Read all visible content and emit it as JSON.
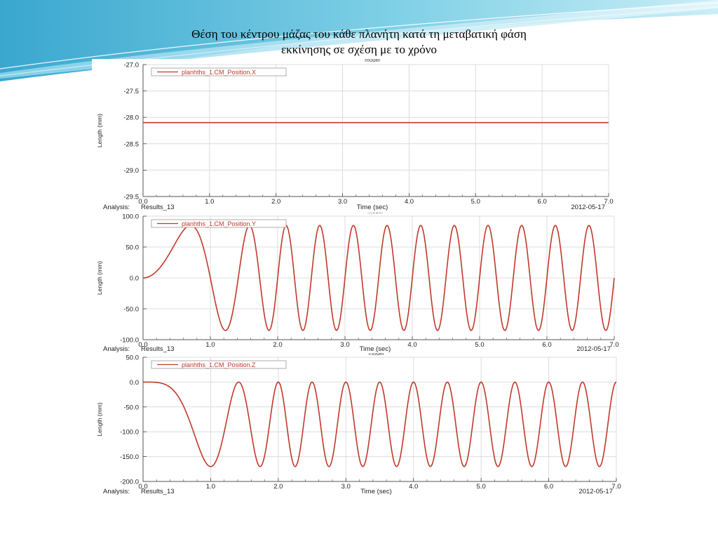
{
  "slide": {
    "title_line1": "Θέση του κέντρου μάζας του κάθε πλανήτη κατά τη μεταβατική φάση",
    "title_line2": "εκκίνησης σε σχέση με το χρόνο"
  },
  "colors": {
    "series": "#c0392b",
    "grid": "#dcdcdc",
    "background_top": "#5ab8d8"
  },
  "chart_data": [
    {
      "type": "line",
      "model_label": "model",
      "legend": "planhths_1.CM_Position.X",
      "ylabel": "Length (mm)",
      "xlabel": "Time (sec)",
      "analysis_label": "Analysis:",
      "analysis_name": "Results_13",
      "date": "2012-05-17",
      "xlim": [
        0,
        7
      ],
      "ylim": [
        -29.5,
        -27.0
      ],
      "xticks": [
        "0.0",
        "1.0",
        "2.0",
        "3.0",
        "4.0",
        "5.0",
        "6.0",
        "7.0"
      ],
      "yticks": [
        "-27.0",
        "-27.5",
        "-28.0",
        "-28.5",
        "-29.0",
        "-29.5"
      ],
      "grid": true,
      "legend_position": "top-left",
      "series": [
        {
          "name": "planhths_1.CM_Position.X",
          "formula": "constant",
          "offset": -28.1
        }
      ]
    },
    {
      "type": "line",
      "model_label": "model",
      "legend": "planhths_1.CM_Position.Y",
      "ylabel": "Length (mm)",
      "xlabel": "Time (sec)",
      "analysis_label": "Analysis:",
      "analysis_name": "Results_13",
      "date": "2012-05-17",
      "xlim": [
        0,
        7
      ],
      "ylim": [
        -100,
        100
      ],
      "xticks": [
        "0.0",
        "1.0",
        "2.0",
        "3.0",
        "4.0",
        "5.0",
        "6.0",
        "7.0"
      ],
      "yticks": [
        "100.0",
        "50.0",
        "0.0",
        "-50.0",
        "-100.0"
      ],
      "grid": true,
      "legend_position": "top-left",
      "series": [
        {
          "name": "planhths_1.CM_Position.Y",
          "formula": "sin_accel",
          "amplitude": 85,
          "offset": 0,
          "ramp_end_time": 2.0
        }
      ]
    },
    {
      "type": "line",
      "model_label": "model",
      "legend": "planhths_1.CM_Position.Z",
      "ylabel": "Length (mm)",
      "xlabel": "Time (sec)",
      "analysis_label": "Analysis:",
      "analysis_name": "Results_13",
      "date": "2012-05-17",
      "xlim": [
        0,
        7
      ],
      "ylim": [
        -200,
        50
      ],
      "xticks": [
        "0.0",
        "1.0",
        "2.0",
        "3.0",
        "4.0",
        "5.0",
        "6.0",
        "7.0"
      ],
      "yticks": [
        "50.0",
        "0.0",
        "-50.0",
        "-100.0",
        "-150.0",
        "-200.0"
      ],
      "grid": true,
      "legend_position": "top-left",
      "series": [
        {
          "name": "planhths_1.CM_Position.Z",
          "formula": "cos_accel",
          "amplitude": 85,
          "offset": -85,
          "ramp_end_time": 2.0
        }
      ]
    }
  ]
}
